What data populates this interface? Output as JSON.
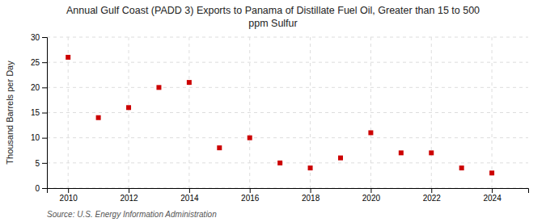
{
  "chart_data": {
    "type": "scatter",
    "title": "Annual Gulf Coast (PADD 3) Exports to Panama of Distillate Fuel Oil, Greater than 15 to 500\nppm Sulfur",
    "y_label": "Thousand Barrels per Day",
    "annotations": [
      "Source: U.S. Energy Information Administration"
    ],
    "x": [
      2010,
      2011,
      2012,
      2013,
      2014,
      2015,
      2016,
      2017,
      2018,
      2019,
      2020,
      2021,
      2022,
      2023,
      2024
    ],
    "values": [
      26,
      14,
      16,
      20,
      21,
      8,
      10,
      5,
      4,
      6,
      11,
      7,
      7,
      4,
      3
    ],
    "color": "#cc0000",
    "marker": "square",
    "xlim": [
      2009.3,
      2025.2
    ],
    "ylim": [
      0,
      30
    ],
    "xticks": [
      2010,
      2012,
      2014,
      2016,
      2018,
      2020,
      2022,
      2024
    ],
    "yticks": [
      0,
      5,
      10,
      15,
      20,
      25,
      30
    ],
    "grid": true
  }
}
